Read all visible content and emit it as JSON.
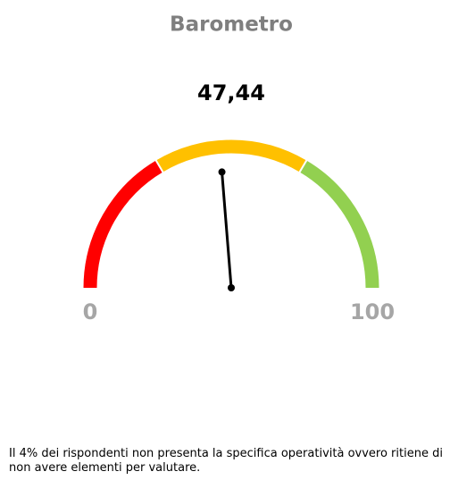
{
  "chart_data": {
    "type": "gauge",
    "title": "Barometro",
    "values": [
      47.44
    ],
    "value_labels": [
      "47,44"
    ],
    "lim": [
      0,
      100
    ],
    "ticks": [
      0,
      100
    ],
    "bands": [
      {
        "from": 0,
        "to": 33,
        "color": "#ff0000"
      },
      {
        "from": 33,
        "to": 67,
        "color": "#ffc000"
      },
      {
        "from": 67,
        "to": 100,
        "color": "#92d050"
      }
    ],
    "needle_color": "#000000",
    "annotation": "Il 4% dei rispondenti non presenta la specifica operatività ovvero ritiene di non avere elementi per valutare."
  }
}
